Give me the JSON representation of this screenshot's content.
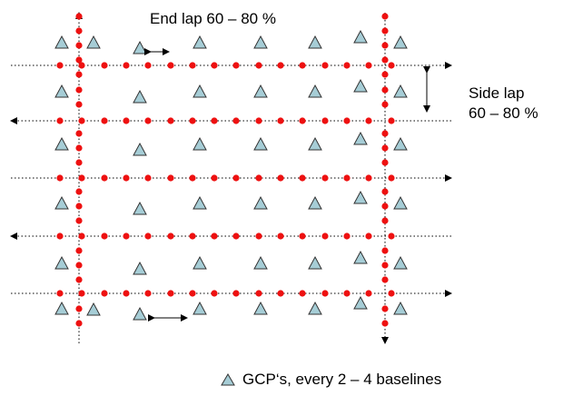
{
  "diagram": {
    "labels": {
      "end_lap": "End lap 60 – 80 %",
      "side_lap_line1": "Side lap",
      "side_lap_line2": "60 – 80 %"
    },
    "legend": {
      "symbol": "triangle-icon",
      "text": "GCP‘s, every 2 – 4 baselines"
    },
    "colors": {
      "gcp_fill": "#a6cdd6",
      "gcp_stroke": "#333333",
      "photo_point": "#ee1111",
      "flight_line": "#000000"
    },
    "flight_lines": [
      {
        "direction": "right"
      },
      {
        "direction": "left"
      },
      {
        "direction": "right"
      },
      {
        "direction": "left"
      },
      {
        "direction": "right"
      }
    ],
    "cross_strips": [
      {
        "direction": "up"
      },
      {
        "direction": "down"
      }
    ]
  }
}
